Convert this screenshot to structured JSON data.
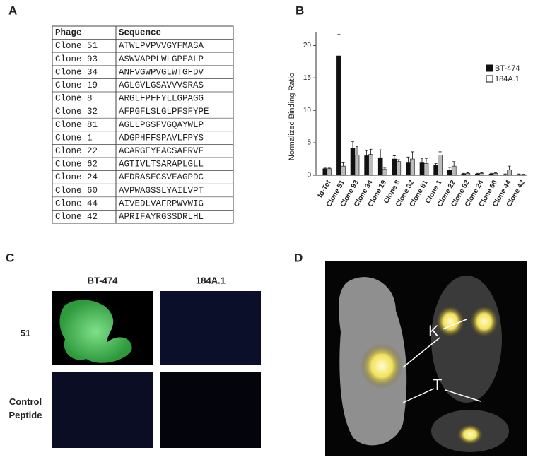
{
  "panels": {
    "a": "A",
    "b": "B",
    "c": "C",
    "d": "D"
  },
  "table": {
    "header": [
      "Phage",
      "Sequence"
    ],
    "rows": [
      [
        "Clone 51",
        "ATWLPVPVVGYFMASA"
      ],
      [
        "Clone 93",
        "ASWVAPPLWLGPFALP"
      ],
      [
        "Clone 34",
        "ANFVGWPVGLWTGFDV"
      ],
      [
        "Clone 19",
        "AGLGVLGSAVVVSRAS"
      ],
      [
        "Clone 8",
        "ARGLFPFFYLLGPAGG"
      ],
      [
        "Clone 32",
        "AFPGFLSLGLPFSFYPE"
      ],
      [
        "Clone 81",
        "AGLLPGSFVGQAYWLP"
      ],
      [
        "Clone 1",
        "ADGPHFFSPAVLFPYS"
      ],
      [
        "Clone 22",
        "ACARGEYFACSAFRVF"
      ],
      [
        "Clone 62",
        "AGTIVLTSARAPLGLL"
      ],
      [
        "Clone 24",
        "AFDRASFCSVFAGPDC"
      ],
      [
        "Clone 60",
        "AVPWAGSSLYAILVPT"
      ],
      [
        "Clone 44",
        "AIVEDLVAFRPWVWIG"
      ],
      [
        "Clone 42",
        "APRIFAYRGSSDRLHL"
      ]
    ]
  },
  "chart_data": {
    "type": "bar",
    "y_label": "Normalized Binding Ratio",
    "categories": [
      "fd-Tet",
      "Clone 51",
      "Clone 93",
      "Clone 34",
      "Clone 19",
      "Clone 8",
      "Clone 32",
      "Clone 81",
      "Clone 1",
      "Clone 22",
      "Clone 62",
      "Clone 24",
      "Clone 60",
      "Clone 44",
      "Clone 42"
    ],
    "series": [
      {
        "name": "BT-474",
        "color": "#111111",
        "values": [
          1,
          18.4,
          4.2,
          3.0,
          2.7,
          2.5,
          1.9,
          1.9,
          1.5,
          0.8,
          0.2,
          0.2,
          0.2,
          0.1,
          0.1
        ],
        "errors": [
          0.1,
          3.3,
          1.0,
          0.8,
          1.2,
          0.5,
          0.9,
          0.7,
          0.3,
          0.4,
          0.1,
          0.1,
          0.1,
          0.1,
          0.1
        ]
      },
      {
        "name": "184A.1",
        "color": "#bbbbbb",
        "values": [
          1,
          1.4,
          3.1,
          3.2,
          0.9,
          2.1,
          2.5,
          1.8,
          3.1,
          1.4,
          0.3,
          0.3,
          0.3,
          0.8,
          0.1
        ],
        "errors": [
          0.1,
          0.5,
          1.3,
          0.8,
          0.2,
          0.3,
          1.1,
          0.8,
          0.5,
          0.7,
          0.1,
          0.1,
          0.1,
          0.6,
          0.05
        ]
      }
    ],
    "ylim": [
      0,
      22
    ],
    "yticks": [
      0,
      5,
      10,
      15,
      20
    ],
    "legend": "upper right"
  },
  "microscopy": {
    "columns": [
      "BT-474",
      "184A.1"
    ],
    "rows": [
      "51",
      "Control Peptide"
    ]
  },
  "imaging": {
    "labels": [
      "K",
      "T"
    ]
  }
}
